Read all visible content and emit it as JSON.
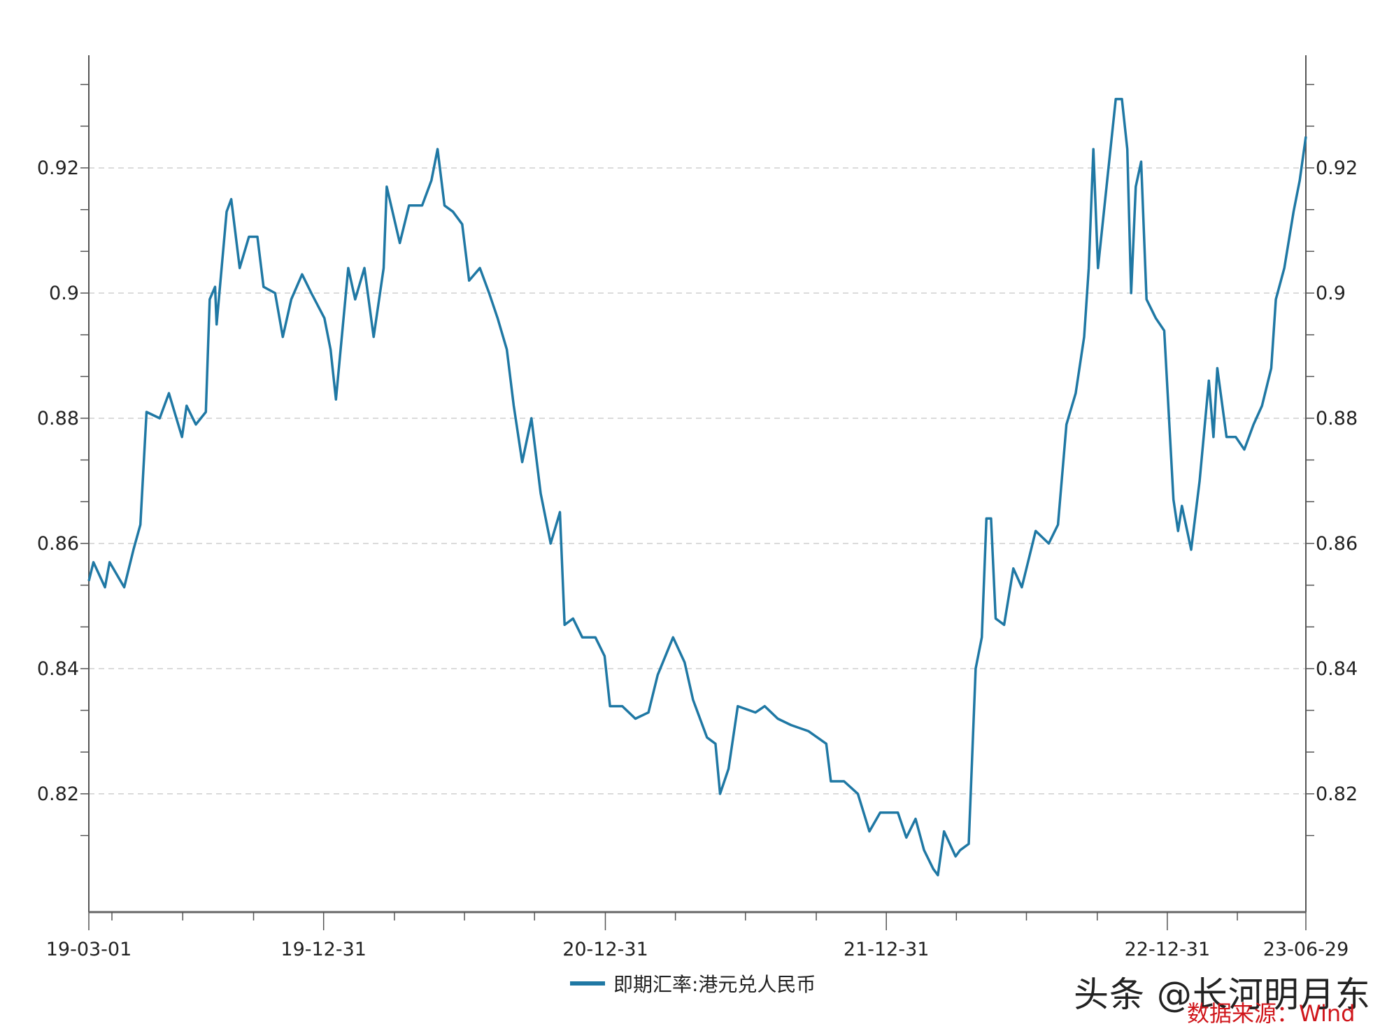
{
  "chart_data": {
    "type": "line",
    "title": "",
    "xlabel": "",
    "ylabel": "",
    "x_unit": "days since 2019-03-01",
    "xlim": [
      0,
      1581
    ],
    "ylim": [
      0.8011,
      0.938
    ],
    "grid": "horizontal dashed at major y ticks",
    "y_ticks": [
      0.82,
      0.84,
      0.86,
      0.88,
      0.9,
      0.92
    ],
    "y_tick_labels": [
      "0.82",
      "0.84",
      "0.86",
      "0.88",
      "0.9",
      "0.92"
    ],
    "y_minor_step": 0.006667,
    "x_ticks": [
      {
        "day": 0,
        "label": "19-03-01"
      },
      {
        "day": 305,
        "label": "19-12-31"
      },
      {
        "day": 671,
        "label": "20-12-31"
      },
      {
        "day": 1036,
        "label": "21-12-31"
      },
      {
        "day": 1401,
        "label": "22-12-31"
      },
      {
        "day": 1581,
        "label": "23-06-29"
      }
    ],
    "x_minor_ticks": [
      30,
      122,
      214,
      397,
      488,
      579,
      762,
      853,
      945,
      1127,
      1218,
      1310,
      1492
    ],
    "legend": {
      "position": "bottom-center",
      "entries": [
        "即期汇率:港元兑人民币"
      ]
    },
    "series": [
      {
        "name": "即期汇率:港元兑人民币",
        "color": "#1f78a4",
        "points": [
          [
            0,
            0.854
          ],
          [
            6,
            0.857
          ],
          [
            21,
            0.853
          ],
          [
            27,
            0.857
          ],
          [
            46,
            0.853
          ],
          [
            58,
            0.859
          ],
          [
            67,
            0.863
          ],
          [
            75,
            0.881
          ],
          [
            92,
            0.88
          ],
          [
            104,
            0.884
          ],
          [
            121,
            0.877
          ],
          [
            127,
            0.882
          ],
          [
            139,
            0.879
          ],
          [
            152,
            0.881
          ],
          [
            157,
            0.899
          ],
          [
            164,
            0.901
          ],
          [
            166,
            0.895
          ],
          [
            179,
            0.913
          ],
          [
            185,
            0.915
          ],
          [
            196,
            0.904
          ],
          [
            208,
            0.909
          ],
          [
            219,
            0.909
          ],
          [
            227,
            0.901
          ],
          [
            242,
            0.9
          ],
          [
            252,
            0.893
          ],
          [
            263,
            0.899
          ],
          [
            277,
            0.903
          ],
          [
            289,
            0.9
          ],
          [
            306,
            0.896
          ],
          [
            314,
            0.891
          ],
          [
            321,
            0.883
          ],
          [
            337,
            0.904
          ],
          [
            346,
            0.899
          ],
          [
            358,
            0.904
          ],
          [
            370,
            0.893
          ],
          [
            383,
            0.904
          ],
          [
            387,
            0.917
          ],
          [
            404,
            0.908
          ],
          [
            416,
            0.914
          ],
          [
            433,
            0.914
          ],
          [
            445,
            0.918
          ],
          [
            453,
            0.923
          ],
          [
            462,
            0.914
          ],
          [
            473,
            0.913
          ],
          [
            485,
            0.911
          ],
          [
            494,
            0.902
          ],
          [
            508,
            0.904
          ],
          [
            520,
            0.9
          ],
          [
            531,
            0.896
          ],
          [
            543,
            0.891
          ],
          [
            552,
            0.882
          ],
          [
            563,
            0.873
          ],
          [
            575,
            0.88
          ],
          [
            587,
            0.868
          ],
          [
            600,
            0.86
          ],
          [
            612,
            0.865
          ],
          [
            618,
            0.847
          ],
          [
            629,
            0.848
          ],
          [
            641,
            0.845
          ],
          [
            658,
            0.845
          ],
          [
            670,
            0.842
          ],
          [
            677,
            0.834
          ],
          [
            693,
            0.834
          ],
          [
            710,
            0.832
          ],
          [
            727,
            0.833
          ],
          [
            739,
            0.839
          ],
          [
            759,
            0.845
          ],
          [
            774,
            0.841
          ],
          [
            785,
            0.835
          ],
          [
            803,
            0.829
          ],
          [
            814,
            0.828
          ],
          [
            820,
            0.82
          ],
          [
            831,
            0.824
          ],
          [
            843,
            0.834
          ],
          [
            866,
            0.833
          ],
          [
            878,
            0.834
          ],
          [
            895,
            0.832
          ],
          [
            912,
            0.831
          ],
          [
            935,
            0.83
          ],
          [
            958,
            0.828
          ],
          [
            964,
            0.822
          ],
          [
            981,
            0.822
          ],
          [
            999,
            0.82
          ],
          [
            1014,
            0.814
          ],
          [
            1028,
            0.817
          ],
          [
            1051,
            0.817
          ],
          [
            1062,
            0.813
          ],
          [
            1074,
            0.816
          ],
          [
            1085,
            0.811
          ],
          [
            1097,
            0.808
          ],
          [
            1103,
            0.807
          ],
          [
            1111,
            0.814
          ],
          [
            1126,
            0.81
          ],
          [
            1132,
            0.811
          ],
          [
            1143,
            0.812
          ],
          [
            1152,
            0.84
          ],
          [
            1160,
            0.845
          ],
          [
            1166,
            0.864
          ],
          [
            1172,
            0.864
          ],
          [
            1178,
            0.848
          ],
          [
            1189,
            0.847
          ],
          [
            1201,
            0.856
          ],
          [
            1212,
            0.853
          ],
          [
            1230,
            0.862
          ],
          [
            1247,
            0.86
          ],
          [
            1259,
            0.863
          ],
          [
            1270,
            0.879
          ],
          [
            1282,
            0.884
          ],
          [
            1293,
            0.893
          ],
          [
            1299,
            0.904
          ],
          [
            1305,
            0.923
          ],
          [
            1311,
            0.904
          ],
          [
            1322,
            0.917
          ],
          [
            1334,
            0.931
          ],
          [
            1342,
            0.931
          ],
          [
            1349,
            0.923
          ],
          [
            1354,
            0.9
          ],
          [
            1360,
            0.917
          ],
          [
            1367,
            0.921
          ],
          [
            1374,
            0.899
          ],
          [
            1386,
            0.896
          ],
          [
            1397,
            0.894
          ],
          [
            1409,
            0.867
          ],
          [
            1415,
            0.862
          ],
          [
            1420,
            0.866
          ],
          [
            1432,
            0.859
          ],
          [
            1443,
            0.87
          ],
          [
            1455,
            0.886
          ],
          [
            1461,
            0.877
          ],
          [
            1466,
            0.888
          ],
          [
            1478,
            0.877
          ],
          [
            1490,
            0.877
          ],
          [
            1501,
            0.875
          ],
          [
            1513,
            0.879
          ],
          [
            1524,
            0.882
          ],
          [
            1536,
            0.888
          ],
          [
            1542,
            0.899
          ],
          [
            1553,
            0.904
          ],
          [
            1565,
            0.913
          ],
          [
            1573,
            0.918
          ],
          [
            1581,
            0.925
          ]
        ]
      }
    ]
  },
  "watermark": "头条 @长河明月东",
  "source": "数据来源：Wind"
}
